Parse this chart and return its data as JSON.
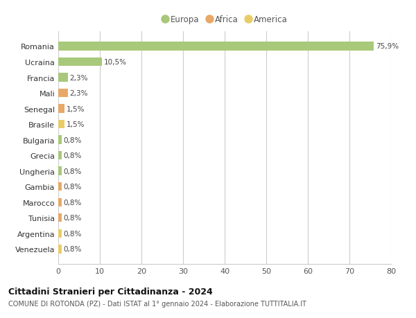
{
  "categories": [
    "Romania",
    "Ucraina",
    "Francia",
    "Mali",
    "Senegal",
    "Brasile",
    "Bulgaria",
    "Grecia",
    "Ungheria",
    "Gambia",
    "Marocco",
    "Tunisia",
    "Argentina",
    "Venezuela"
  ],
  "values": [
    75.9,
    10.5,
    2.3,
    2.3,
    1.5,
    1.5,
    0.8,
    0.8,
    0.8,
    0.8,
    0.8,
    0.8,
    0.8,
    0.8
  ],
  "labels": [
    "75,9%",
    "10,5%",
    "2,3%",
    "2,3%",
    "1,5%",
    "1,5%",
    "0,8%",
    "0,8%",
    "0,8%",
    "0,8%",
    "0,8%",
    "0,8%",
    "0,8%",
    "0,8%"
  ],
  "continents": [
    "Europa",
    "Europa",
    "Europa",
    "Africa",
    "Africa",
    "America",
    "Europa",
    "Europa",
    "Europa",
    "Africa",
    "Africa",
    "Africa",
    "America",
    "America"
  ],
  "colors": {
    "Europa": "#a8c87a",
    "Africa": "#e8a868",
    "America": "#e8cc68"
  },
  "legend_items": [
    "Europa",
    "Africa",
    "America"
  ],
  "xlim": [
    0,
    80
  ],
  "xticks": [
    0,
    10,
    20,
    30,
    40,
    50,
    60,
    70,
    80
  ],
  "title": "Cittadini Stranieri per Cittadinanza - 2024",
  "subtitle": "COMUNE DI ROTONDA (PZ) - Dati ISTAT al 1° gennaio 2024 - Elaborazione TUTTITALIA.IT",
  "background_color": "#ffffff",
  "grid_color": "#cccccc",
  "bar_height": 0.55
}
